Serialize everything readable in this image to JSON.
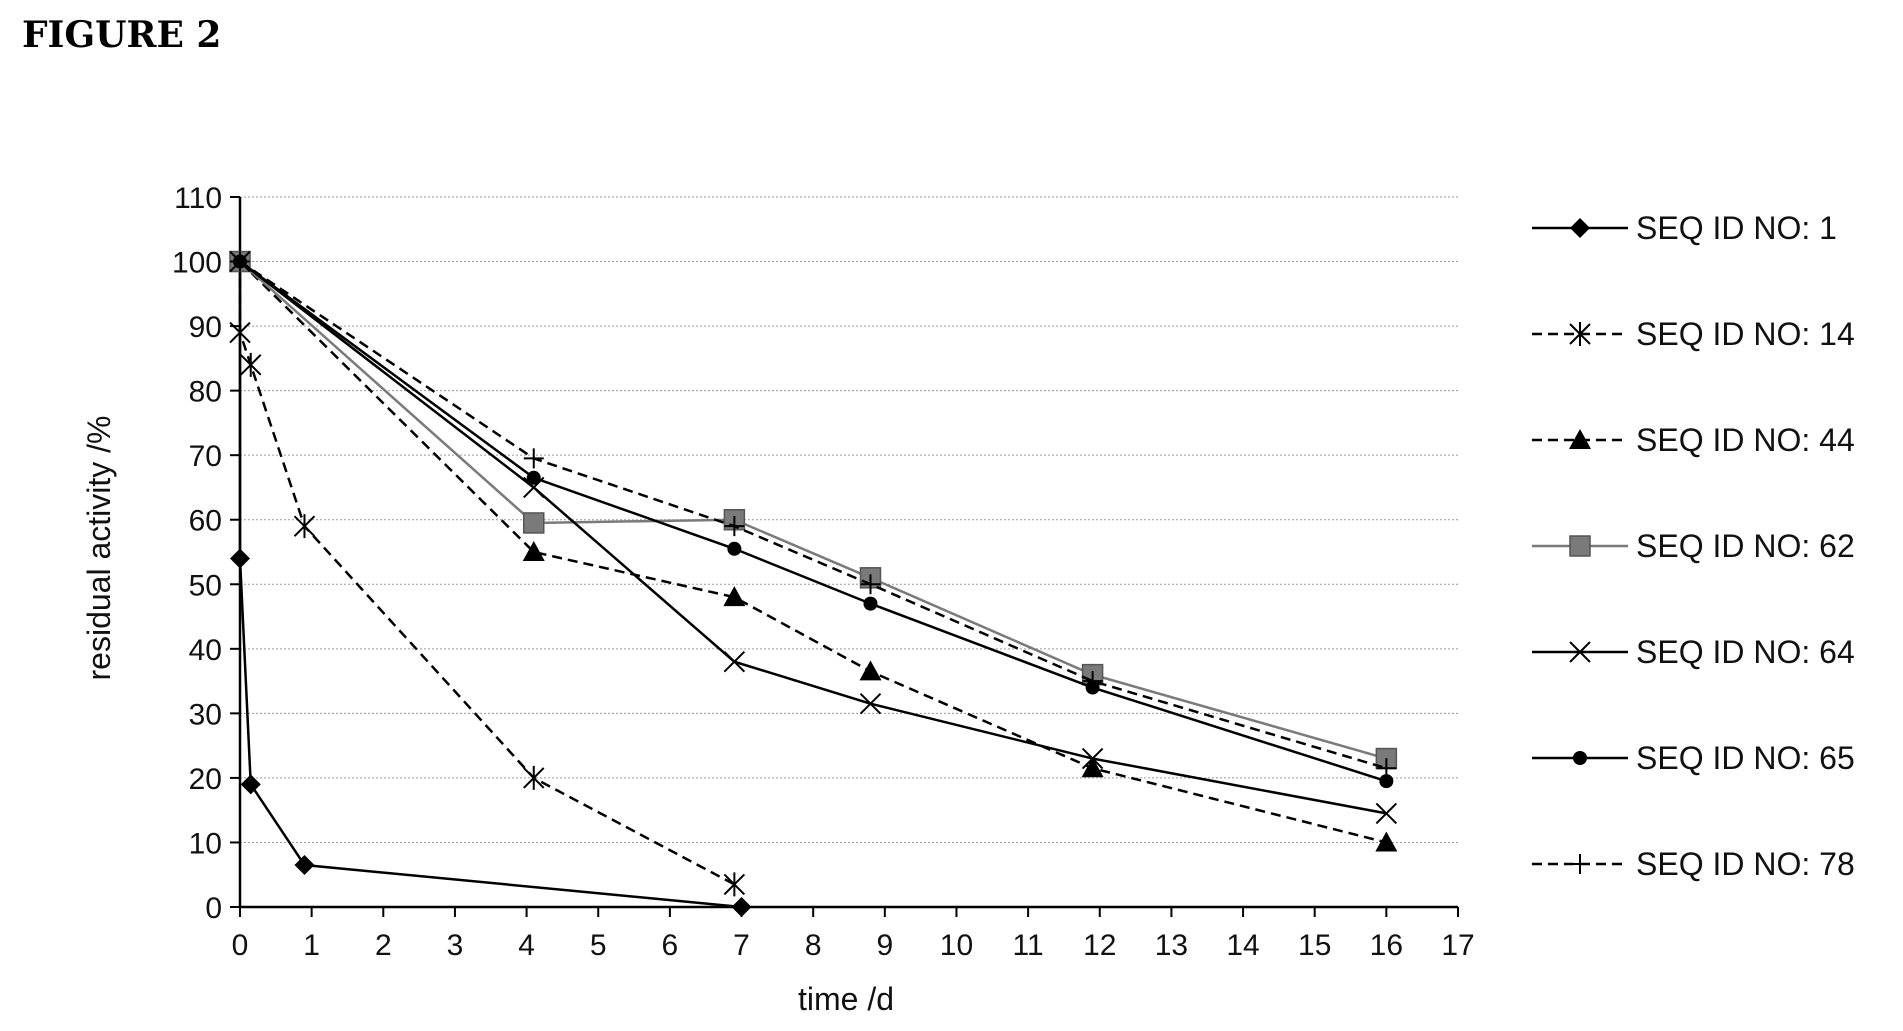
{
  "figure_label": "FIGURE 2",
  "chart_data": {
    "type": "line",
    "title": "",
    "xlabel": "time /d",
    "ylabel": "residual activity /%",
    "xlim": [
      0,
      17
    ],
    "ylim": [
      0,
      110
    ],
    "xticks": [
      "0",
      "1",
      "2",
      "3",
      "4",
      "5",
      "6",
      "7",
      "8",
      "9",
      "10",
      "11",
      "12",
      "13",
      "14",
      "15",
      "16",
      "17"
    ],
    "yticks": [
      "0",
      "10",
      "20",
      "30",
      "40",
      "50",
      "60",
      "70",
      "80",
      "90",
      "100",
      "110"
    ],
    "grid": "horizontal",
    "legend_position": "right",
    "series": [
      {
        "name": "SEQ ID NO: 1",
        "marker": "diamond",
        "dash": false,
        "x": [
          0,
          0,
          0.15,
          0.9,
          7
        ],
        "y": [
          100,
          54,
          19,
          6.5,
          0
        ]
      },
      {
        "name": "SEQ ID NO: 14",
        "marker": "star",
        "dash": true,
        "x": [
          0,
          0,
          0.15,
          0.9,
          4.1,
          6.9
        ],
        "y": [
          100,
          89,
          84,
          59,
          20,
          3.5
        ]
      },
      {
        "name": "SEQ ID NO: 44",
        "marker": "triangle",
        "dash": true,
        "x": [
          0,
          4.1,
          6.9,
          8.8,
          11.9,
          16
        ],
        "y": [
          100,
          55,
          48,
          36.5,
          21.5,
          10
        ]
      },
      {
        "name": "SEQ ID NO: 62",
        "marker": "square",
        "dash": false,
        "color": "#7a7a7a",
        "x": [
          0,
          4.1,
          6.9,
          8.8,
          11.9,
          16
        ],
        "y": [
          100,
          59.5,
          60,
          51,
          36,
          23
        ]
      },
      {
        "name": "SEQ ID NO: 64",
        "marker": "x",
        "dash": false,
        "x": [
          0,
          4.1,
          6.9,
          8.8,
          11.9,
          16
        ],
        "y": [
          100,
          65,
          38,
          31.5,
          23,
          14.5
        ]
      },
      {
        "name": "SEQ ID NO: 65",
        "marker": "circle",
        "dash": false,
        "x": [
          0,
          4.1,
          6.9,
          8.8,
          11.9,
          16
        ],
        "y": [
          100,
          66.5,
          55.5,
          47,
          34,
          19.5
        ]
      },
      {
        "name": "SEQ ID NO: 78",
        "marker": "plus",
        "dash": true,
        "x": [
          0,
          4.1,
          6.9,
          8.8,
          11.9,
          16
        ],
        "y": [
          100,
          69.5,
          59,
          50,
          35,
          21.5
        ]
      }
    ]
  }
}
